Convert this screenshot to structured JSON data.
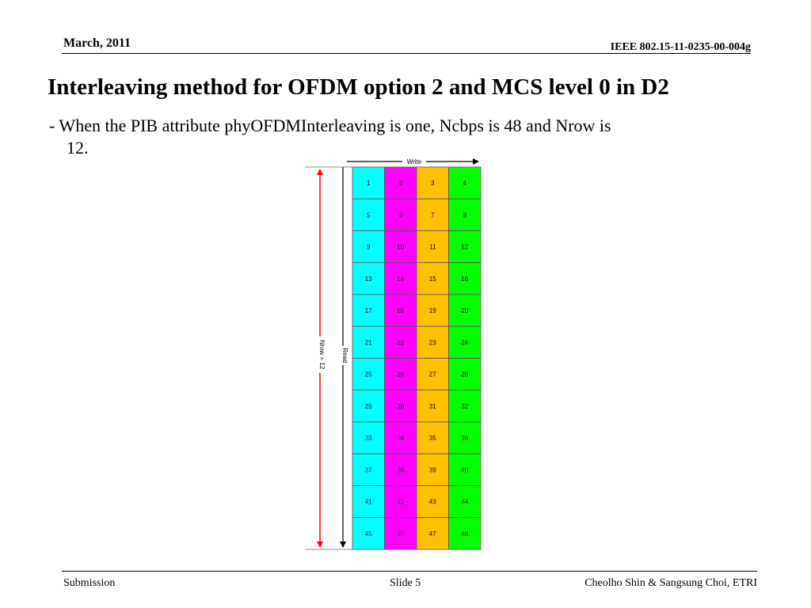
{
  "header": {
    "date": "March,  2011",
    "doc_id": "IEEE 802.15-11-0235-00-004g"
  },
  "slide": {
    "title": "Interleaving method for OFDM option 2 and MCS level 0 in D2",
    "bullet_line1": "- When the PIB attribute phyOFDMInterleaving is one, Ncbps is 48 and Nrow is",
    "bullet_line2": "12."
  },
  "diagram": {
    "write_label": "Write",
    "read_label": "Read",
    "nrow_label": "Nrow = 12",
    "column_colors": [
      "#00ffff",
      "#ff00ff",
      "#ffc000",
      "#00ff00"
    ],
    "arrow_color_nrow": "#ff0000",
    "cells": [
      [
        "1",
        "2",
        "3",
        "4"
      ],
      [
        "5",
        "6",
        "7",
        "8"
      ],
      [
        "9",
        "10",
        "11",
        "12"
      ],
      [
        "13",
        "14",
        "15",
        "16"
      ],
      [
        "17",
        "18",
        "19",
        "20"
      ],
      [
        "21",
        "22",
        "23",
        "24"
      ],
      [
        "25",
        "26",
        "27",
        "28"
      ],
      [
        "29",
        "30",
        "31",
        "32"
      ],
      [
        "33",
        "34",
        "35",
        "36"
      ],
      [
        "37",
        "38",
        "39",
        "40"
      ],
      [
        "41",
        "42",
        "43",
        "44"
      ],
      [
        "45",
        "46",
        "47",
        "48"
      ]
    ]
  },
  "footer": {
    "left": "Submission",
    "center": "Slide 5",
    "right": "Cheolho Shin & Sangsung Choi, ETRI"
  }
}
